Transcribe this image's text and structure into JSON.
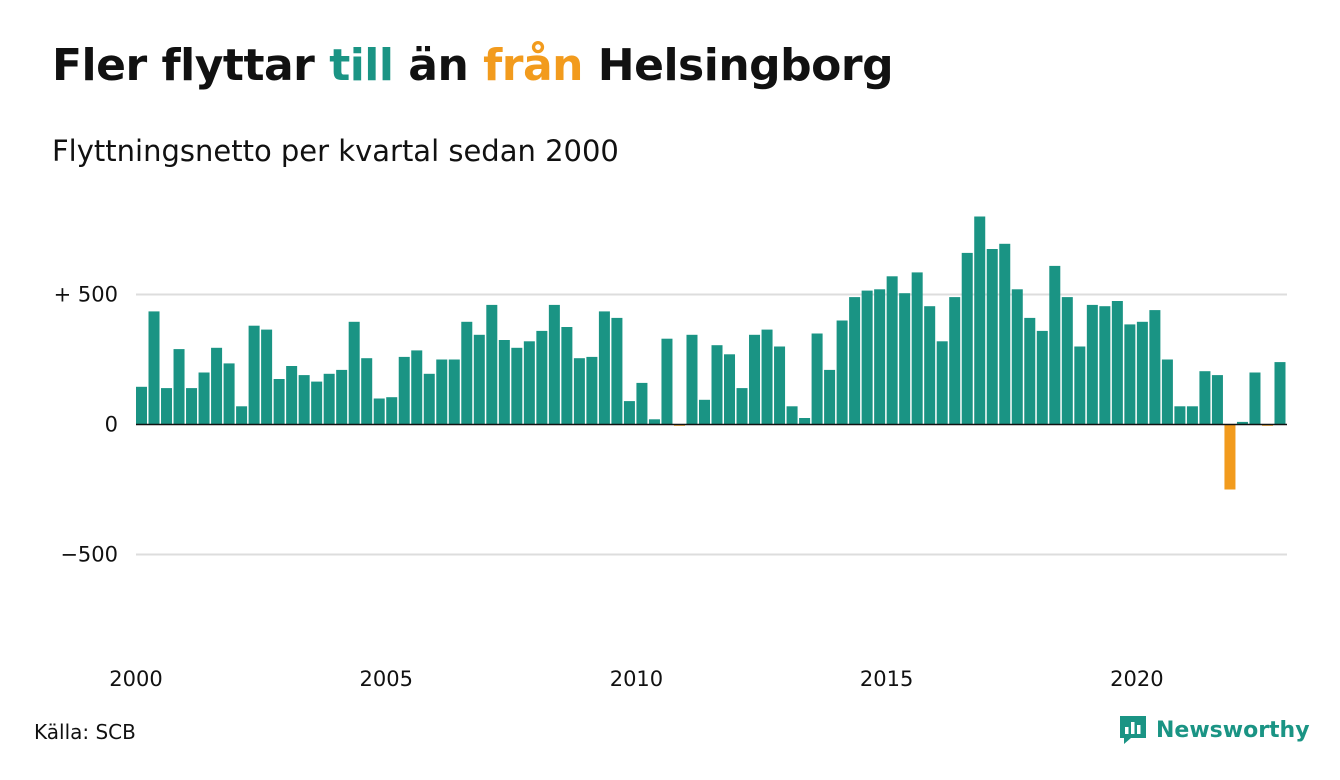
{
  "header": {
    "title_part1": "Fler flyttar ",
    "title_till": "till",
    "title_part2": " än ",
    "title_fran": "från",
    "title_part3": " Helsingborg",
    "subtitle": "Flyttningsnetto per kvartal sedan 2000"
  },
  "footer": {
    "source": "Källa: SCB",
    "brand": "Newsworthy"
  },
  "colors": {
    "positive": "#1a9484",
    "negative": "#f29b1d",
    "grid": "#dddddd",
    "text": "#111111"
  },
  "chart_data": {
    "type": "bar",
    "title": "Fler flyttar till än från Helsingborg",
    "subtitle": "Flyttningsnetto per kvartal sedan 2000",
    "xlabel": "",
    "ylabel": "",
    "x_start_year": 2000,
    "quarters_per_year": 4,
    "xticks": [
      {
        "year": 2000,
        "label": "2000"
      },
      {
        "year": 2005,
        "label": "2005"
      },
      {
        "year": 2010,
        "label": "2010"
      },
      {
        "year": 2015,
        "label": "2015"
      },
      {
        "year": 2020,
        "label": "2020"
      }
    ],
    "yticks": [
      {
        "value": 500,
        "label": "+ 500"
      },
      {
        "value": 0,
        "label": "0"
      },
      {
        "value": -500,
        "label": "−500"
      }
    ],
    "ylim": [
      -830,
      830
    ],
    "grid": true,
    "values": [
      145,
      435,
      140,
      290,
      140,
      200,
      295,
      235,
      70,
      380,
      365,
      175,
      225,
      190,
      165,
      195,
      210,
      395,
      255,
      100,
      105,
      260,
      285,
      195,
      250,
      250,
      395,
      345,
      460,
      325,
      295,
      320,
      360,
      460,
      375,
      255,
      260,
      435,
      410,
      90,
      160,
      20,
      330,
      -5,
      345,
      95,
      305,
      270,
      140,
      345,
      365,
      300,
      70,
      25,
      350,
      210,
      400,
      490,
      515,
      520,
      570,
      505,
      585,
      455,
      320,
      490,
      660,
      800,
      675,
      695,
      520,
      410,
      360,
      610,
      490,
      300,
      460,
      455,
      475,
      385,
      395,
      440,
      250,
      70,
      70,
      205,
      190,
      -250,
      10,
      200,
      -5,
      240
    ]
  }
}
